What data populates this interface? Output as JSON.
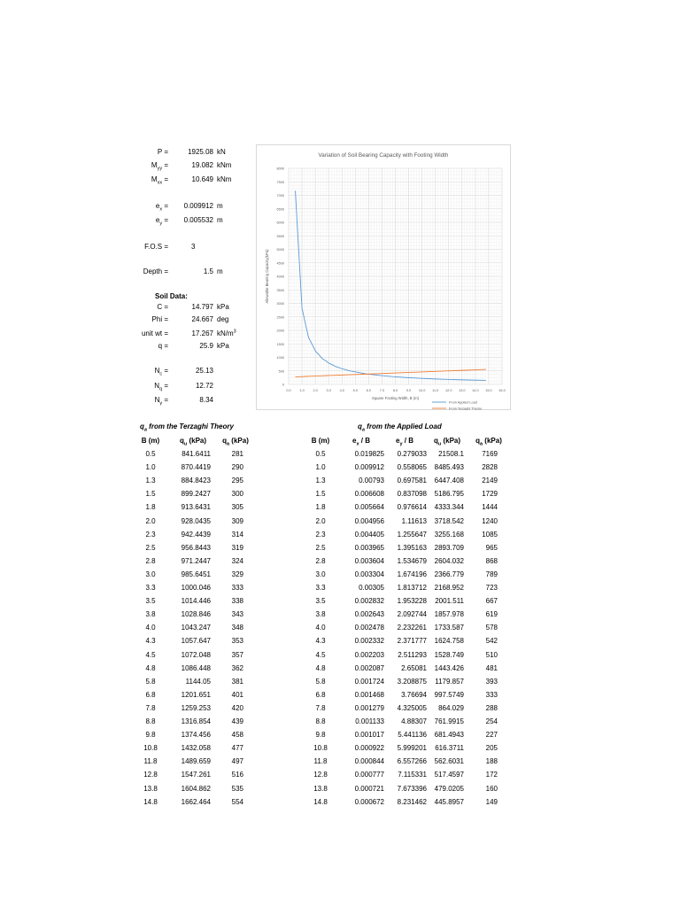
{
  "params": {
    "P": {
      "label": "P =",
      "value": "1925.08",
      "unit": "kN"
    },
    "Myy": {
      "label_main": "M",
      "label_sub": "yy",
      "label_end": " =",
      "value": "19.082",
      "unit": "kNm"
    },
    "Mxx": {
      "label_main": "M",
      "label_sub": "xx",
      "label_end": " =",
      "value": "10.649",
      "unit": "kNm"
    },
    "ex": {
      "label_main": "e",
      "label_sub": "x",
      "label_end": " =",
      "value": "0.009912",
      "unit": "m"
    },
    "ey": {
      "label_main": "e",
      "label_sub": "y",
      "label_end": " =",
      "value": "0.005532",
      "unit": "m"
    },
    "fos": {
      "label": "F.O.S =",
      "value": "3"
    },
    "depth": {
      "label": "Depth =",
      "value": "1.5",
      "unit": "m"
    }
  },
  "soil": {
    "heading": "Soil Data:",
    "C": {
      "label": "C =",
      "value": "14.797",
      "unit": "kPa"
    },
    "Phi": {
      "label": "Phi =",
      "value": "24.667",
      "unit": "deg"
    },
    "unitwt": {
      "label": "unit wt =",
      "value": "17.267",
      "unit_main": "kN/m",
      "unit_sup": "3"
    },
    "q": {
      "label": "q =",
      "value": "25.9",
      "unit": "kPa"
    }
  },
  "factors": {
    "Nc": {
      "label_main": "N",
      "label_sub": "c",
      "label_end": " =",
      "value": "25.13"
    },
    "Nq": {
      "label_main": "N",
      "label_sub": "q",
      "label_end": " =",
      "value": "12.72"
    },
    "Ng": {
      "label_main": "N",
      "label_sub": "γ",
      "label_end": " =",
      "value": "8.34"
    }
  },
  "terzaghi": {
    "title_main": "q",
    "title_sub": "a",
    "title_end": " from the Terzaghi Theory",
    "headers": [
      "B (m)",
      "q_u (kPa)",
      "q_a (kPa)"
    ],
    "rows": [
      [
        "0.5",
        "841.6411",
        "281"
      ],
      [
        "1.0",
        "870.4419",
        "290"
      ],
      [
        "1.3",
        "884.8423",
        "295"
      ],
      [
        "1.5",
        "899.2427",
        "300"
      ],
      [
        "1.8",
        "913.6431",
        "305"
      ],
      [
        "2.0",
        "928.0435",
        "309"
      ],
      [
        "2.3",
        "942.4439",
        "314"
      ],
      [
        "2.5",
        "956.8443",
        "319"
      ],
      [
        "2.8",
        "971.2447",
        "324"
      ],
      [
        "3.0",
        "985.6451",
        "329"
      ],
      [
        "3.3",
        "1000.046",
        "333"
      ],
      [
        "3.5",
        "1014.446",
        "338"
      ],
      [
        "3.8",
        "1028.846",
        "343"
      ],
      [
        "4.0",
        "1043.247",
        "348"
      ],
      [
        "4.3",
        "1057.647",
        "353"
      ],
      [
        "4.5",
        "1072.048",
        "357"
      ],
      [
        "4.8",
        "1086.448",
        "362"
      ],
      [
        "5.8",
        "1144.05",
        "381"
      ],
      [
        "6.8",
        "1201.651",
        "401"
      ],
      [
        "7.8",
        "1259.253",
        "420"
      ],
      [
        "8.8",
        "1316.854",
        "439"
      ],
      [
        "9.8",
        "1374.456",
        "458"
      ],
      [
        "10.8",
        "1432.058",
        "477"
      ],
      [
        "11.8",
        "1489.659",
        "497"
      ],
      [
        "12.8",
        "1547.261",
        "516"
      ],
      [
        "13.8",
        "1604.862",
        "535"
      ],
      [
        "14.8",
        "1662.464",
        "554"
      ]
    ]
  },
  "applied": {
    "title_main": "q",
    "title_sub": "a",
    "title_end": " from the Applied Load",
    "headers": [
      "B (m)",
      "e_x / B",
      "e_y / B",
      "q_u (kPa)",
      "q_a (kPa)"
    ],
    "rows": [
      [
        "0.5",
        "0.019825",
        "0.279033",
        "21508.1",
        "7169"
      ],
      [
        "1.0",
        "0.009912",
        "0.558065",
        "8485.493",
        "2828"
      ],
      [
        "1.3",
        "0.00793",
        "0.697581",
        "6447.408",
        "2149"
      ],
      [
        "1.5",
        "0.006608",
        "0.837098",
        "5186.795",
        "1729"
      ],
      [
        "1.8",
        "0.005664",
        "0.976614",
        "4333.344",
        "1444"
      ],
      [
        "2.0",
        "0.004956",
        "1.11613",
        "3718.542",
        "1240"
      ],
      [
        "2.3",
        "0.004405",
        "1.255647",
        "3255.168",
        "1085"
      ],
      [
        "2.5",
        "0.003965",
        "1.395163",
        "2893.709",
        "965"
      ],
      [
        "2.8",
        "0.003604",
        "1.534679",
        "2604.032",
        "868"
      ],
      [
        "3.0",
        "0.003304",
        "1.674196",
        "2366.779",
        "789"
      ],
      [
        "3.3",
        "0.00305",
        "1.813712",
        "2168.952",
        "723"
      ],
      [
        "3.5",
        "0.002832",
        "1.953228",
        "2001.511",
        "667"
      ],
      [
        "3.8",
        "0.002643",
        "2.092744",
        "1857.978",
        "619"
      ],
      [
        "4.0",
        "0.002478",
        "2.232261",
        "1733.587",
        "578"
      ],
      [
        "4.3",
        "0.002332",
        "2.371777",
        "1624.758",
        "542"
      ],
      [
        "4.5",
        "0.002203",
        "2.511293",
        "1528.749",
        "510"
      ],
      [
        "4.8",
        "0.002087",
        "2.65081",
        "1443.426",
        "481"
      ],
      [
        "5.8",
        "0.001724",
        "3.208875",
        "1179.857",
        "393"
      ],
      [
        "6.8",
        "0.001468",
        "3.76694",
        "997.5749",
        "333"
      ],
      [
        "7.8",
        "0.001279",
        "4.325005",
        "864.029",
        "288"
      ],
      [
        "8.8",
        "0.001133",
        "4.88307",
        "761.9915",
        "254"
      ],
      [
        "9.8",
        "0.001017",
        "5.441136",
        "681.4943",
        "227"
      ],
      [
        "10.8",
        "0.000922",
        "5.999201",
        "616.3711",
        "205"
      ],
      [
        "11.8",
        "0.000844",
        "6.557266",
        "562.6031",
        "188"
      ],
      [
        "12.8",
        "0.000777",
        "7.115331",
        "517.4597",
        "172"
      ],
      [
        "13.8",
        "0.000721",
        "7.673396",
        "479.0205",
        "160"
      ],
      [
        "14.8",
        "0.000672",
        "8.231462",
        "445.8957",
        "149"
      ]
    ]
  },
  "chart_data": {
    "type": "line",
    "title": "Variation of Soil Bearing Capacity with Footing Width",
    "xlabel": "Square Footing Width, B (m)",
    "ylabel": "Allowable Bearing Capacity(kPa)",
    "xlim": [
      0,
      16
    ],
    "ylim": [
      0,
      8000
    ],
    "xticks": [
      "0.0",
      "1.0",
      "2.0",
      "3.0",
      "4.0",
      "5.0",
      "6.0",
      "7.0",
      "8.0",
      "9.0",
      "10.0",
      "11.0",
      "12.0",
      "13.0",
      "14.0",
      "15.0",
      "16.0"
    ],
    "yticks": [
      "0",
      "500",
      "1000",
      "1500",
      "2000",
      "2500",
      "3000",
      "3500",
      "4000",
      "4500",
      "5000",
      "5500",
      "6000",
      "6500",
      "7000",
      "7500",
      "8000"
    ],
    "grid": true,
    "legend_position": "bottom-right",
    "x": [
      0.5,
      1.0,
      1.3,
      1.5,
      1.8,
      2.0,
      2.3,
      2.5,
      2.8,
      3.0,
      3.3,
      3.5,
      3.8,
      4.0,
      4.3,
      4.5,
      4.8,
      5.8,
      6.8,
      7.8,
      8.8,
      9.8,
      10.8,
      11.8,
      12.8,
      13.8,
      14.8
    ],
    "series": [
      {
        "name": "From Applied Load",
        "color": "#5b9bd5",
        "values": [
          7169,
          2828,
          2149,
          1729,
          1444,
          1240,
          1085,
          965,
          868,
          789,
          723,
          667,
          619,
          578,
          542,
          510,
          481,
          393,
          333,
          288,
          254,
          227,
          205,
          188,
          172,
          160,
          149
        ]
      },
      {
        "name": "From Terzaghi Theory",
        "color": "#ed7d31",
        "values": [
          281,
          290,
          295,
          300,
          305,
          309,
          314,
          319,
          324,
          329,
          333,
          338,
          343,
          348,
          353,
          357,
          362,
          381,
          401,
          420,
          439,
          458,
          477,
          497,
          516,
          535,
          554
        ]
      }
    ]
  }
}
